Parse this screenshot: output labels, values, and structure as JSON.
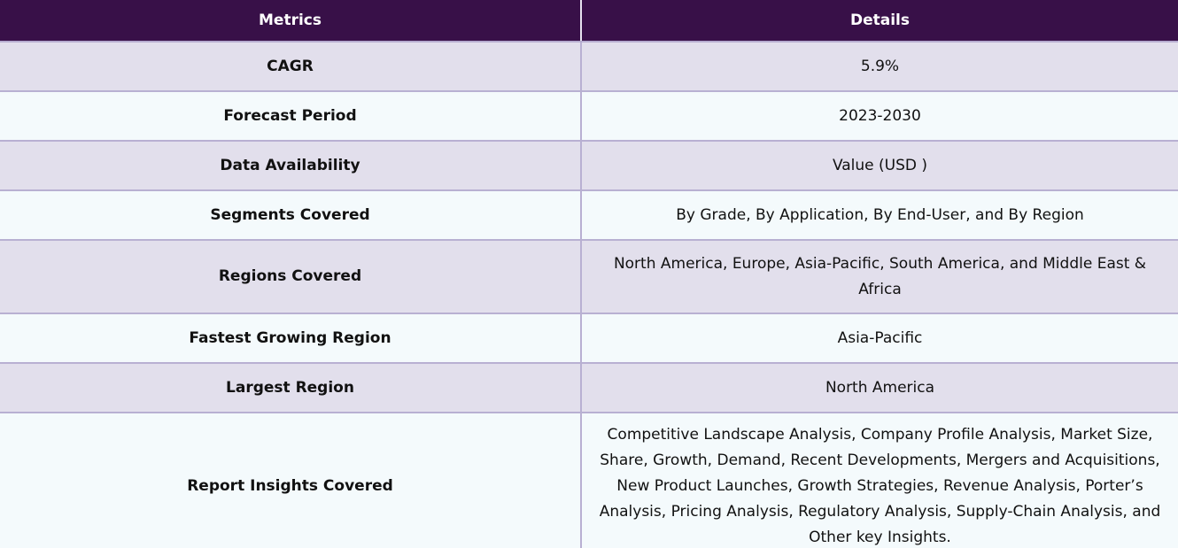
{
  "table": {
    "headers": {
      "metrics": "Metrics",
      "details": "Details"
    },
    "rows": [
      {
        "metric": "CAGR",
        "detail": "5.9%"
      },
      {
        "metric": "Forecast Period",
        "detail": "2023-2030"
      },
      {
        "metric": "Data Availability",
        "detail": "Value (USD )"
      },
      {
        "metric": "Segments Covered",
        "detail": "By Grade, By Application, By End-User, and By Region"
      },
      {
        "metric": "Regions Covered",
        "detail": "North America, Europe, Asia-Pacific, South America, and Middle East & Africa"
      },
      {
        "metric": "Fastest Growing Region",
        "detail": "Asia-Pacific"
      },
      {
        "metric": "Largest Region",
        "detail": "North America"
      },
      {
        "metric": "Report Insights Covered",
        "detail": "Competitive Landscape Analysis, Company Profile Analysis, Market Size, Share, Growth, Demand, Recent Developments, Mergers and Acquisitions, New Product Launches, Growth Strategies, Revenue Analysis, Porter’s Analysis, Pricing Analysis, Regulatory Analysis, Supply-Chain Analysis, and Other key Insights."
      }
    ]
  },
  "colors": {
    "header_bg": "#381048",
    "row_odd_bg": "#e2dfec",
    "row_even_bg": "#f4fafc",
    "border": "#b8b0d2"
  }
}
